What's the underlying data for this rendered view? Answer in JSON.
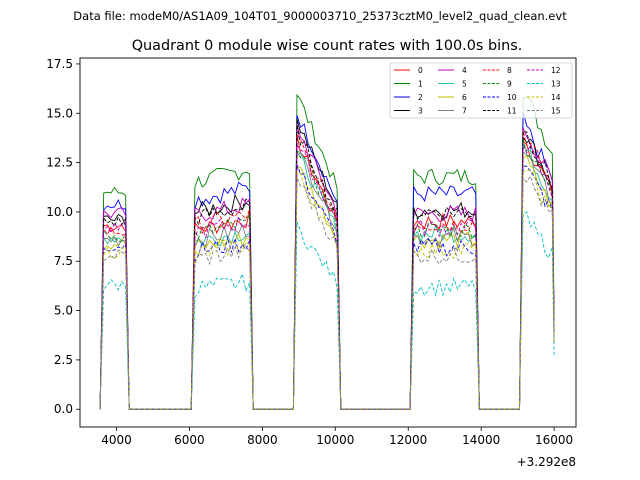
{
  "chart_data": {
    "type": "line",
    "suptitle": "Data file: modeM0/AS1A09_104T01_9000003710_25373cztM0_level2_quad_clean.evt",
    "title": "Quadrant 0 module wise count rates with 100.0s bins.",
    "xlabel": "",
    "ylabel": "",
    "x_offset_label": "+3.292e8",
    "xlim": [
      3000,
      16600
    ],
    "ylim": [
      -0.9,
      17.8
    ],
    "xticks": [
      4000,
      6000,
      8000,
      10000,
      12000,
      14000,
      16000
    ],
    "yticks": [
      0.0,
      2.5,
      5.0,
      7.5,
      10.0,
      12.5,
      15.0,
      17.5
    ],
    "ytick_labels": [
      "0.0",
      "2.5",
      "5.0",
      "7.5",
      "10.0",
      "12.5",
      "15.0",
      "17.5"
    ],
    "bin_width_s": 100,
    "segments": [
      {
        "start": 3650,
        "end": 4250,
        "decay": 0.0,
        "jitter": 0.35
      },
      {
        "start": 6150,
        "end": 7650,
        "decay": -0.06,
        "jitter": 0.45
      },
      {
        "start": 8950,
        "end": 10050,
        "decay": 0.3,
        "jitter": 0.35
      },
      {
        "start": 12150,
        "end": 13850,
        "decay": 0.0,
        "jitter": 0.45
      },
      {
        "start": 15150,
        "end": 15950,
        "decay": 0.2,
        "jitter": 0.45
      }
    ],
    "gap_value": 0.0,
    "legend_position": "top-right",
    "series": [
      {
        "name": "0",
        "color": "#ff0000",
        "dash": "solid",
        "levels": [
          9.3,
          9.1,
          13.6,
          9.5,
          13.8
        ]
      },
      {
        "name": "1",
        "color": "#008000",
        "dash": "solid",
        "levels": [
          11.0,
          11.5,
          16.0,
          11.8,
          16.2
        ]
      },
      {
        "name": "2",
        "color": "#0000ff",
        "dash": "solid",
        "levels": [
          10.4,
          10.6,
          15.0,
          10.9,
          14.6
        ]
      },
      {
        "name": "3",
        "color": "#000000",
        "dash": "solid",
        "levels": [
          9.6,
          10.0,
          14.6,
          10.1,
          14.2
        ]
      },
      {
        "name": "4",
        "color": "#bf00bf",
        "dash": "solid",
        "levels": [
          9.9,
          9.8,
          14.3,
          9.9,
          14.4
        ]
      },
      {
        "name": "5",
        "color": "#1fbfa0",
        "dash": "solid",
        "levels": [
          8.7,
          8.5,
          13.0,
          8.9,
          13.4
        ]
      },
      {
        "name": "6",
        "color": "#bfbf00",
        "dash": "solid",
        "levels": [
          8.4,
          8.2,
          12.4,
          8.6,
          12.8
        ]
      },
      {
        "name": "7",
        "color": "#808080",
        "dash": "solid",
        "levels": [
          8.6,
          8.6,
          13.2,
          8.7,
          13.2
        ]
      },
      {
        "name": "8",
        "color": "#ff0000",
        "dash": "dashed",
        "levels": [
          9.0,
          9.3,
          13.8,
          9.4,
          14.1
        ]
      },
      {
        "name": "9",
        "color": "#008000",
        "dash": "dashed",
        "levels": [
          8.8,
          8.9,
          13.4,
          9.1,
          13.6
        ]
      },
      {
        "name": "10",
        "color": "#0000ff",
        "dash": "dashed",
        "levels": [
          8.3,
          8.0,
          12.3,
          8.2,
          12.5
        ]
      },
      {
        "name": "11",
        "color": "#000000",
        "dash": "dashed",
        "levels": [
          9.5,
          9.7,
          14.1,
          10.0,
          14.3
        ]
      },
      {
        "name": "12",
        "color": "#bf00bf",
        "dash": "dashed",
        "levels": [
          9.1,
          9.0,
          13.5,
          9.2,
          13.7
        ]
      },
      {
        "name": "13",
        "color": "#00bfbf",
        "dash": "dashed",
        "levels": [
          6.3,
          6.1,
          9.2,
          6.2,
          9.8
        ]
      },
      {
        "name": "14",
        "color": "#bfbf00",
        "dash": "dashed",
        "levels": [
          8.0,
          7.9,
          12.0,
          8.1,
          12.4
        ]
      },
      {
        "name": "15",
        "color": "#808080",
        "dash": "dashed",
        "levels": [
          7.8,
          7.6,
          11.7,
          7.8,
          12.1
        ]
      }
    ]
  }
}
